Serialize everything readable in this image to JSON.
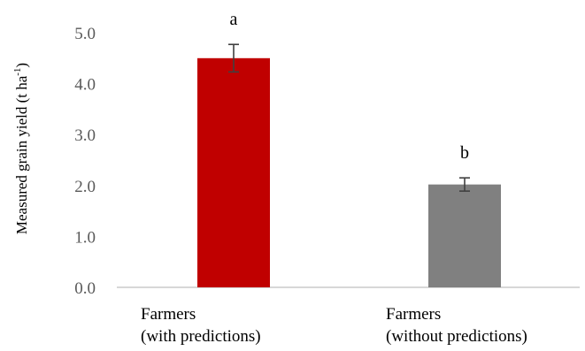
{
  "chart_data": {
    "type": "bar",
    "categories": [
      [
        "Farmers",
        "(with predictions)"
      ],
      [
        "Farmers",
        "(without predictions)"
      ]
    ],
    "values": [
      4.5,
      2.02
    ],
    "errors": [
      0.27,
      0.13
    ],
    "significance_letters": [
      "a",
      "b"
    ],
    "bar_colors": [
      "#C00000",
      "#808080"
    ],
    "ylabel": {
      "text": "Measured grain yield (t ha",
      "superscript": "-1",
      "suffix": ")"
    },
    "yticks": [
      "0.0",
      "1.0",
      "2.0",
      "3.0",
      "4.0",
      "5.0"
    ],
    "ylim": [
      0,
      5
    ],
    "grid": false
  }
}
